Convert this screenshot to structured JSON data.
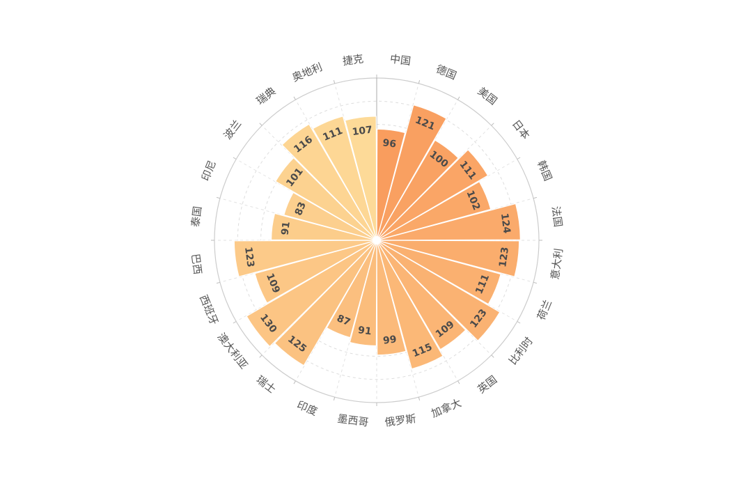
{
  "chart_data": {
    "type": "bar",
    "subtype": "polar-rose",
    "categories": [
      "中国",
      "德国",
      "美国",
      "日本",
      "韩国",
      "法国",
      "意大利",
      "荷兰",
      "比利时",
      "英国",
      "加拿大",
      "俄罗斯",
      "墨西哥",
      "印度",
      "瑞士",
      "澳大利亚",
      "西班牙",
      "巴西",
      "泰国",
      "印尼",
      "波兰",
      "瑞典",
      "奥地利",
      "捷克"
    ],
    "values": [
      96,
      121,
      100,
      111,
      102,
      124,
      123,
      111,
      123,
      109,
      115,
      99,
      91,
      87,
      125,
      130,
      109,
      123,
      91,
      83,
      101,
      116,
      111,
      107
    ],
    "rlim": [
      0,
      140
    ],
    "grid": true,
    "colors": [
      "#f99d5e",
      "#fdda98"
    ]
  }
}
